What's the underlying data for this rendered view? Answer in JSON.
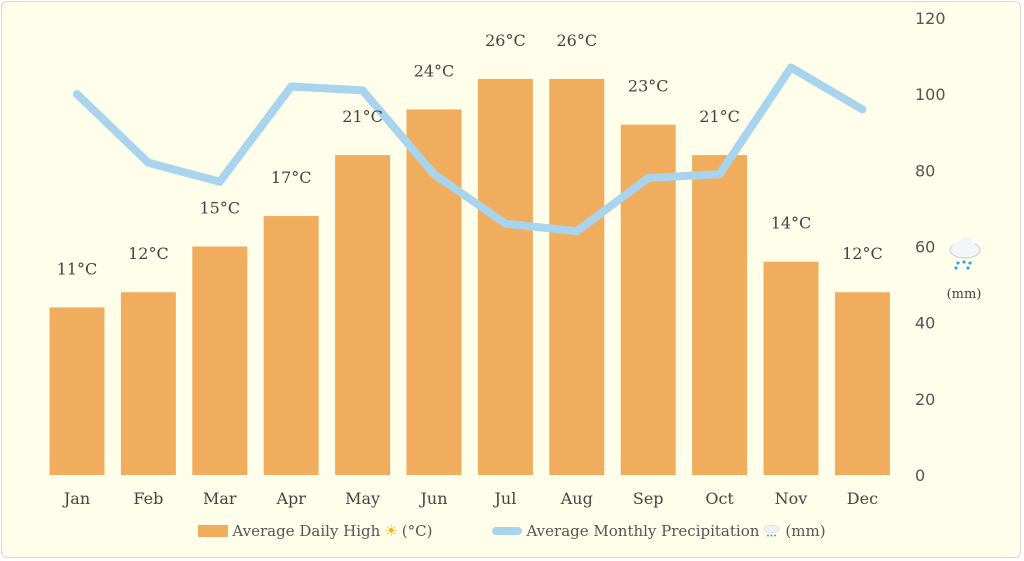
{
  "chart_data": {
    "type": "bar+line",
    "categories": [
      "Jan",
      "Feb",
      "Mar",
      "Apr",
      "May",
      "Jun",
      "Jul",
      "Aug",
      "Sep",
      "Oct",
      "Nov",
      "Dec"
    ],
    "series": [
      {
        "name": "Average Daily High ☀ (°C)",
        "type": "bar",
        "values": [
          11,
          12,
          15,
          17,
          21,
          24,
          26,
          26,
          23,
          21,
          14,
          12
        ],
        "unit": "°C",
        "color": "#f0ad5e"
      },
      {
        "name": "Average Monthly Precipitation 🌧 (mm)",
        "type": "line",
        "values": [
          100,
          82,
          77,
          102,
          101,
          79,
          66,
          64,
          78,
          79,
          107,
          96
        ],
        "color": "#a8d4ee"
      }
    ],
    "y_right": {
      "ticks": [
        0,
        20,
        40,
        60,
        80,
        100,
        120
      ],
      "range": [
        0,
        120
      ],
      "label": "(mm)",
      "icon": "rain-cloud-icon"
    },
    "legend": {
      "placement": "bottom",
      "items": [
        {
          "text_before": "Average Daily High",
          "icon": "sun-icon",
          "text_after": "(°C)"
        },
        {
          "text_before": "Average Monthly Precipitation",
          "icon": "rain-cloud-icon",
          "text_after": "(mm)"
        }
      ]
    },
    "grid": false
  }
}
